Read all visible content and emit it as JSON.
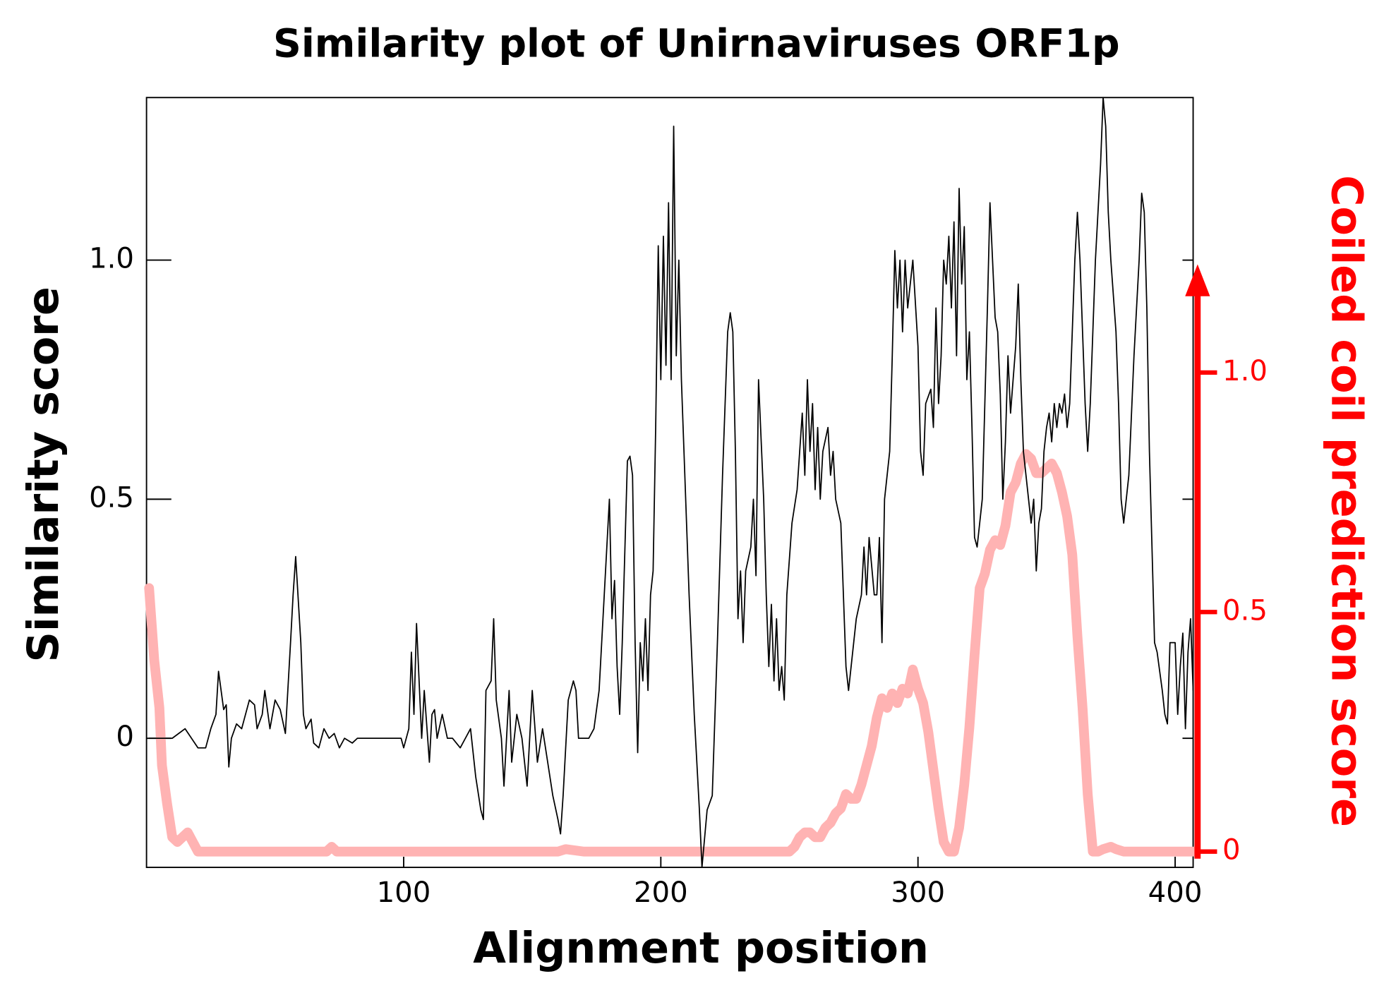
{
  "chart_data": {
    "type": "line",
    "title": "Similarity plot of Unirnaviruses ORF1p",
    "x_label": "Alignment position",
    "y_label": "Similarity score",
    "y2_label": "Coiled coil prediction score",
    "xlim": [
      0,
      407
    ],
    "xticks": [
      100,
      200,
      300,
      400
    ],
    "ylim": [
      -0.27,
      1.34
    ],
    "yticks": [
      0,
      0.5,
      {
        "value": 1,
        "label": "1.0"
      }
    ],
    "y2lim": [
      -0.033,
      1.574
    ],
    "y2ticks": [
      0,
      0.5,
      {
        "value": 1,
        "label": "1.0"
      }
    ],
    "y2_color": "#ff0000",
    "series": [
      {
        "color": "#000000",
        "x": [
          1,
          10,
          15,
          20,
          23,
          25,
          27,
          28,
          30,
          31,
          32,
          33,
          35,
          37,
          40,
          42,
          43,
          45,
          46,
          48,
          50,
          52,
          54,
          56,
          57,
          58,
          60,
          61,
          62,
          64,
          65,
          67,
          69,
          71,
          73,
          75,
          77,
          80,
          82,
          85,
          90,
          95,
          99,
          100,
          102,
          103,
          104,
          105,
          107,
          108,
          110,
          111,
          112,
          113,
          115,
          117,
          119,
          122,
          124,
          126,
          127,
          128,
          130,
          131,
          132,
          134,
          135,
          136,
          138,
          139,
          141,
          142,
          144,
          146,
          148,
          150,
          152,
          154,
          156,
          158,
          160,
          161,
          162,
          164,
          166,
          167,
          168,
          170,
          172,
          174,
          176,
          178,
          180,
          181,
          182,
          183,
          184,
          185,
          187,
          188,
          189,
          190,
          191,
          192,
          193,
          194,
          195,
          196,
          197,
          198,
          199,
          200,
          201,
          202,
          203,
          204,
          205,
          206,
          207,
          208,
          209,
          211,
          213,
          215,
          216,
          218,
          220,
          222,
          224,
          226,
          227,
          228,
          229,
          230,
          231,
          232,
          233,
          235,
          236,
          237,
          238,
          240,
          241,
          242,
          243,
          244,
          245,
          246,
          247,
          248,
          249,
          251,
          253,
          254,
          255,
          256,
          257,
          258,
          259,
          260,
          261,
          262,
          263,
          265,
          266,
          267,
          268,
          270,
          272,
          273,
          275,
          276,
          278,
          279,
          280,
          281,
          283,
          284,
          285,
          286,
          287,
          289,
          290,
          291,
          292,
          293,
          294,
          295,
          296,
          297,
          298,
          300,
          301,
          302,
          303,
          305,
          306,
          307,
          308,
          309,
          310,
          311,
          312,
          313,
          314,
          315,
          316,
          317,
          318,
          319,
          320,
          321,
          322,
          323,
          324,
          325,
          326,
          327,
          328,
          329,
          330,
          331,
          332,
          333,
          334,
          335,
          336,
          337,
          338,
          339,
          340,
          341,
          342,
          343,
          344,
          345,
          346,
          347,
          348,
          349,
          350,
          351,
          352,
          353,
          354,
          355,
          356,
          357,
          358,
          359,
          360,
          361,
          362,
          363,
          364,
          365,
          366,
          367,
          368,
          369,
          370,
          371,
          372,
          373,
          374,
          375,
          377,
          378,
          379,
          380,
          382,
          384,
          386,
          387,
          388,
          389,
          390,
          392,
          393,
          395,
          396,
          397,
          398,
          400,
          401,
          402,
          403,
          404,
          405,
          406,
          407
        ],
        "values": [
          0,
          0,
          0.02,
          -0.02,
          -0.02,
          0.02,
          0.05,
          0.14,
          0.06,
          0.07,
          -0.06,
          0,
          0.03,
          0.02,
          0.08,
          0.07,
          0.02,
          0.05,
          0.1,
          0.02,
          0.08,
          0.06,
          0.01,
          0.2,
          0.3,
          0.38,
          0.2,
          0.05,
          0.02,
          0.04,
          -0.01,
          -0.02,
          0.02,
          0,
          0.01,
          -0.02,
          0,
          -0.01,
          0,
          0,
          0,
          0,
          0,
          -0.02,
          0.02,
          0.18,
          0.05,
          0.24,
          0,
          0.1,
          -0.05,
          0.05,
          0.06,
          0,
          0.05,
          0,
          0,
          -0.02,
          0,
          0.02,
          -0.03,
          -0.08,
          -0.15,
          -0.17,
          0.1,
          0.12,
          0.25,
          0.08,
          0,
          -0.1,
          0.1,
          -0.05,
          0.05,
          0,
          -0.1,
          0.1,
          -0.05,
          0.02,
          -0.05,
          -0.12,
          -0.17,
          -0.2,
          -0.12,
          0.08,
          0.12,
          0.1,
          0,
          0,
          0,
          0.02,
          0.1,
          0.3,
          0.5,
          0.25,
          0.33,
          0.15,
          0.05,
          0.2,
          0.58,
          0.59,
          0.55,
          0.2,
          -0.03,
          0.2,
          0.12,
          0.25,
          0.1,
          0.3,
          0.35,
          0.65,
          1.03,
          0.75,
          1.05,
          0.78,
          1.12,
          0.75,
          1.28,
          0.8,
          1,
          0.75,
          0.6,
          0.3,
          0.05,
          -0.15,
          -0.27,
          -0.15,
          -0.12,
          0.2,
          0.55,
          0.85,
          0.89,
          0.85,
          0.6,
          0.25,
          0.35,
          0.2,
          0.35,
          0.4,
          0.5,
          0.34,
          0.75,
          0.5,
          0.3,
          0.15,
          0.28,
          0.12,
          0.25,
          0.1,
          0.15,
          0.08,
          0.3,
          0.45,
          0.52,
          0.6,
          0.68,
          0.55,
          0.75,
          0.6,
          0.7,
          0.52,
          0.65,
          0.5,
          0.6,
          0.65,
          0.55,
          0.6,
          0.5,
          0.45,
          0.15,
          0.1,
          0.2,
          0.25,
          0.3,
          0.4,
          0.3,
          0.42,
          0.3,
          0.3,
          0.42,
          0.2,
          0.5,
          0.6,
          0.8,
          1.02,
          0.9,
          1,
          0.85,
          1,
          0.9,
          0.95,
          1,
          0.82,
          0.6,
          0.55,
          0.7,
          0.73,
          0.65,
          0.9,
          0.7,
          0.8,
          1,
          0.95,
          1.05,
          0.9,
          1.08,
          0.8,
          1.15,
          0.95,
          1.07,
          0.75,
          0.85,
          0.65,
          0.42,
          0.4,
          0.45,
          0.5,
          0.7,
          0.9,
          1.12,
          1,
          0.88,
          0.85,
          0.72,
          0.5,
          0.62,
          0.8,
          0.68,
          0.75,
          0.82,
          0.95,
          0.75,
          0.6,
          0.55,
          0.5,
          0.45,
          0.5,
          0.35,
          0.45,
          0.48,
          0.6,
          0.65,
          0.68,
          0.62,
          0.7,
          0.65,
          0.7,
          0.68,
          0.72,
          0.65,
          0.7,
          0.85,
          1,
          1.1,
          1,
          0.85,
          0.7,
          0.6,
          0.7,
          0.85,
          1,
          1.1,
          1.2,
          1.34,
          1.28,
          1.1,
          1,
          0.85,
          0.7,
          0.5,
          0.45,
          0.55,
          0.8,
          1,
          1.14,
          1.1,
          0.9,
          0.6,
          0.2,
          0.18,
          0.1,
          0.05,
          0.03,
          0.2,
          0.2,
          0.05,
          0.15,
          0.22,
          0.02,
          0.18,
          0.25,
          0.1
        ]
      },
      {
        "color": "#ffb3b3",
        "axis": "y2",
        "x": [
          1,
          3,
          5,
          6,
          8,
          10,
          12,
          14,
          16,
          18,
          20,
          22,
          70,
          72,
          74,
          160,
          163,
          170,
          250,
          252,
          254,
          256,
          258,
          260,
          262,
          264,
          266,
          268,
          270,
          272,
          274,
          276,
          278,
          280,
          282,
          284,
          286,
          288,
          290,
          292,
          294,
          296,
          298,
          300,
          302,
          304,
          306,
          308,
          310,
          312,
          314,
          316,
          318,
          320,
          322,
          324,
          326,
          328,
          330,
          332,
          334,
          336,
          338,
          340,
          342,
          344,
          346,
          348,
          350,
          352,
          354,
          356,
          358,
          360,
          362,
          364,
          366,
          368,
          370,
          372,
          375,
          377,
          380,
          407
        ],
        "values": [
          0.55,
          0.4,
          0.3,
          0.18,
          0.1,
          0.03,
          0.02,
          0.03,
          0.04,
          0.02,
          0,
          0,
          0,
          0.01,
          0,
          0,
          0.005,
          0,
          0,
          0.01,
          0.03,
          0.04,
          0.04,
          0.03,
          0.03,
          0.05,
          0.06,
          0.08,
          0.09,
          0.12,
          0.11,
          0.11,
          0.14,
          0.18,
          0.22,
          0.28,
          0.32,
          0.3,
          0.33,
          0.31,
          0.34,
          0.33,
          0.38,
          0.34,
          0.31,
          0.25,
          0.17,
          0.09,
          0.02,
          0,
          0,
          0.05,
          0.14,
          0.26,
          0.41,
          0.55,
          0.58,
          0.63,
          0.65,
          0.64,
          0.68,
          0.75,
          0.77,
          0.81,
          0.83,
          0.82,
          0.79,
          0.79,
          0.8,
          0.81,
          0.79,
          0.75,
          0.7,
          0.62,
          0.45,
          0.3,
          0.12,
          0,
          0,
          0.005,
          0.01,
          0.005,
          0,
          0
        ]
      }
    ]
  }
}
